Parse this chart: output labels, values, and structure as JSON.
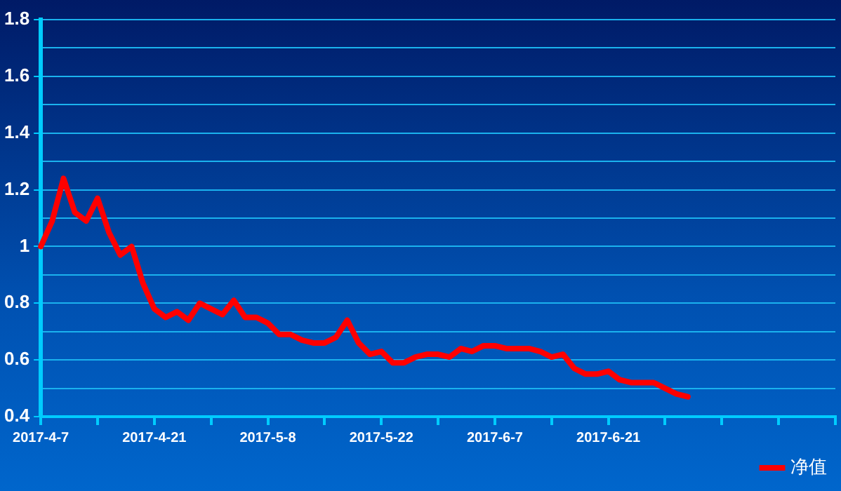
{
  "chart_data": {
    "type": "line",
    "categories": [
      "2017-4-7",
      null,
      null,
      null,
      null,
      null,
      null,
      null,
      null,
      null,
      "2017-4-21",
      null,
      null,
      null,
      null,
      null,
      null,
      null,
      null,
      null,
      "2017-5-8",
      null,
      null,
      null,
      null,
      null,
      null,
      null,
      null,
      null,
      "2017-5-22",
      null,
      null,
      null,
      null,
      null,
      null,
      null,
      null,
      null,
      "2017-6-7",
      null,
      null,
      null,
      null,
      null,
      null,
      null,
      null,
      null,
      "2017-6-21",
      null,
      null,
      null,
      null,
      null,
      null,
      null,
      null,
      null,
      null,
      null,
      null,
      null,
      null,
      null,
      null,
      null,
      null,
      null,
      null
    ],
    "series": [
      {
        "name": "净值",
        "color": "#ff0000",
        "values": [
          1.0,
          1.09,
          1.24,
          1.12,
          1.09,
          1.17,
          1.05,
          0.97,
          1.0,
          0.87,
          0.78,
          0.75,
          0.77,
          0.74,
          0.8,
          0.78,
          0.76,
          0.81,
          0.75,
          0.75,
          0.73,
          0.69,
          0.69,
          0.67,
          0.66,
          0.66,
          0.68,
          0.74,
          0.66,
          0.62,
          0.63,
          0.59,
          0.59,
          0.61,
          0.62,
          0.62,
          0.61,
          0.64,
          0.63,
          0.65,
          0.65,
          0.64,
          0.64,
          0.64,
          0.63,
          0.61,
          0.62,
          0.57,
          0.55,
          0.55,
          0.56,
          0.53,
          0.52,
          0.52,
          0.52,
          0.5,
          0.48,
          0.47,
          null,
          null,
          null,
          null,
          null,
          null,
          null,
          null,
          null,
          null,
          null,
          null,
          null
        ]
      }
    ],
    "ylim": [
      0.4,
      1.8
    ],
    "yticks": [
      0.4,
      {
        "value": 0.5,
        "label": null
      },
      0.6,
      {
        "value": 0.7,
        "label": null
      },
      0.8,
      {
        "value": 0.9,
        "label": null
      },
      1,
      {
        "value": 1.1,
        "label": null
      },
      1.2,
      {
        "value": 1.3,
        "label": null
      },
      1.4,
      {
        "value": 1.5,
        "label": null
      },
      1.6,
      {
        "value": 1.7,
        "label": null
      },
      1.8
    ],
    "grid": "y",
    "legend": "bottom right",
    "marker": "none",
    "line_style": "solid"
  }
}
